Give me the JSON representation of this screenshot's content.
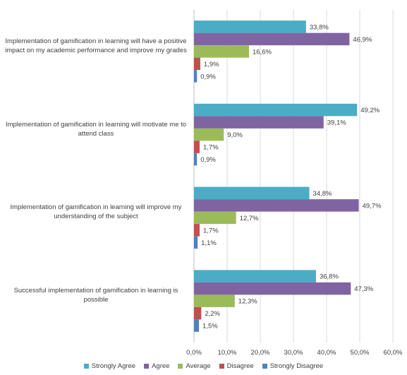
{
  "chart_data": {
    "type": "bar",
    "orientation": "horizontal",
    "categories": [
      "Implementation of gamification in learning will have a positive impact on my academic performance and improve my grades",
      "Implementation of gamification in learning will motivate me to attend class",
      "Implementation of gamification in learning will improve my understanding of the subject",
      "Successful implementation of gamification in learning is possible"
    ],
    "series": [
      {
        "name": "Strongly Agree",
        "color": "#4bacc6",
        "values": [
          33.8,
          49.2,
          34.8,
          36.8
        ],
        "labels": [
          "33,8%",
          "49,2%",
          "34,8%",
          "36,8%"
        ]
      },
      {
        "name": "Agree",
        "color": "#8064a2",
        "values": [
          46.9,
          39.1,
          49.7,
          47.3
        ],
        "labels": [
          "46,9%",
          "39,1%",
          "49,7%",
          "47,3%"
        ]
      },
      {
        "name": "Average",
        "color": "#9bbb59",
        "values": [
          16.6,
          9.0,
          12.7,
          12.3
        ],
        "labels": [
          "16,6%",
          "9,0%",
          "12,7%",
          "12,3%"
        ]
      },
      {
        "name": "Disagree",
        "color": "#c0504d",
        "values": [
          1.9,
          1.7,
          1.7,
          2.2
        ],
        "labels": [
          "1,9%",
          "1,7%",
          "1,7%",
          "2,2%"
        ]
      },
      {
        "name": "Strongly Disagree",
        "color": "#4f81bd",
        "values": [
          0.9,
          0.9,
          1.1,
          1.5
        ],
        "labels": [
          "0,9%",
          "0,9%",
          "1,1%",
          "1,5%"
        ]
      }
    ],
    "xlim": [
      0,
      60
    ],
    "x_ticks": [
      0,
      10,
      20,
      30,
      40,
      50,
      60
    ],
    "x_tick_labels": [
      "0,0%",
      "10,0%",
      "20,0%",
      "30,0%",
      "40,0%",
      "50,0%",
      "60,0%"
    ],
    "grid": true,
    "legend_position": "bottom",
    "title": "",
    "xlabel": "",
    "ylabel": ""
  }
}
